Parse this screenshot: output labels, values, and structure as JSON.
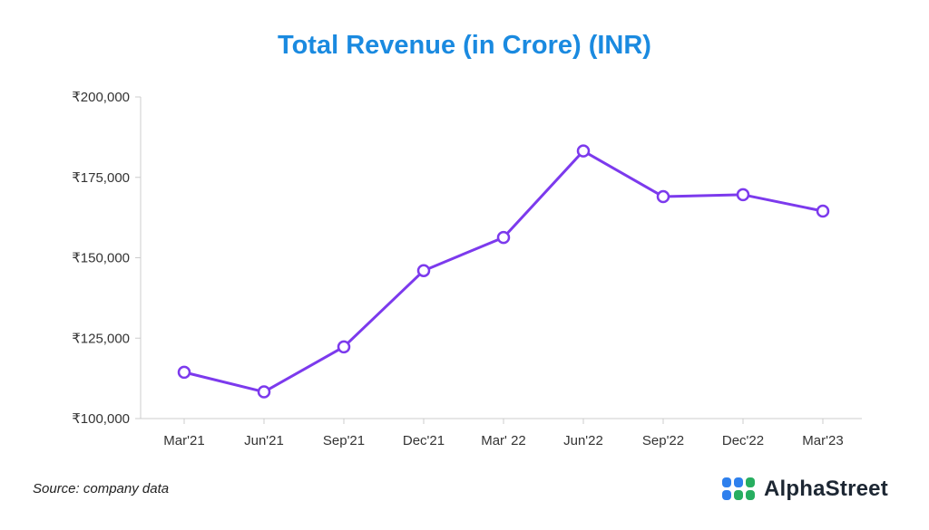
{
  "chart_data": {
    "type": "line",
    "title": "Total Revenue (in Crore) (INR)",
    "xlabel": "",
    "ylabel": "",
    "categories": [
      "Mar'21",
      "Jun'21",
      "Sep'21",
      "Dec'21",
      "Mar' 22",
      "Jun'22",
      "Sep'22",
      "Dec'22",
      "Mar'23"
    ],
    "series": [
      {
        "name": "Total Revenue",
        "values": [
          114400,
          108300,
          122300,
          146000,
          156300,
          183200,
          169000,
          169600,
          164500
        ]
      }
    ],
    "ylim": [
      100000,
      200000
    ],
    "yticks": [
      100000,
      125000,
      150000,
      175000,
      200000
    ],
    "ytick_labels": [
      "₹100,000",
      "₹125,000",
      "₹150,000",
      "₹175,000",
      "₹200,000"
    ],
    "grid": false,
    "line_color": "#7c3aed"
  },
  "footer": {
    "source": "Source: company data",
    "brand": "AlphaStreet"
  },
  "colors": {
    "title": "#1a8ae0",
    "axis": "#cccccc",
    "brand_blue": "#2f80ed",
    "brand_green": "#27ae60"
  }
}
